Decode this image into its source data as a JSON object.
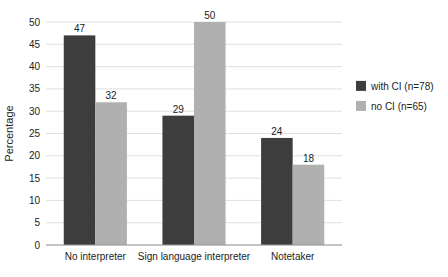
{
  "chart_data": {
    "type": "bar",
    "categories": [
      "No interpreter",
      "Sign language interpreter",
      "Notetaker"
    ],
    "series": [
      {
        "name": "with CI (n=78)",
        "color": "#3d3d3d",
        "values": [
          47,
          29,
          24
        ]
      },
      {
        "name": "no CI (n=65)",
        "color": "#b0b0b0",
        "values": [
          32,
          50,
          18
        ]
      }
    ],
    "y_label": "Percentage",
    "ylim": [
      0,
      50
    ],
    "yticks": [
      0,
      5,
      10,
      15,
      20,
      25,
      30,
      35,
      40,
      45,
      50
    ],
    "grid": true,
    "legend": "right",
    "data_labels": true
  }
}
